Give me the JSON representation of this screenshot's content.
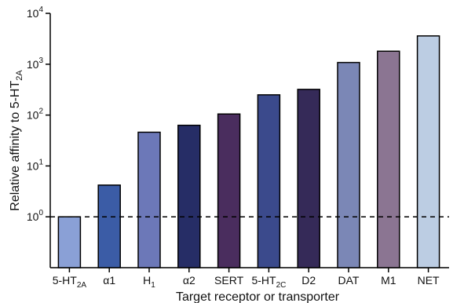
{
  "chart_data": {
    "type": "bar",
    "title": "",
    "xlabel": "Target receptor or transporter",
    "ylabel": {
      "text": "Relative affinity to 5-HT",
      "sub": "2A"
    },
    "scale": "log",
    "ylim": [
      0.1,
      10000
    ],
    "y_ticks": [
      {
        "value": 1,
        "base": "10",
        "exp": "0"
      },
      {
        "value": 10,
        "base": "10",
        "exp": "1"
      },
      {
        "value": 100,
        "base": "10",
        "exp": "2"
      },
      {
        "value": 1000,
        "base": "10",
        "exp": "3"
      },
      {
        "value": 10000,
        "base": "10",
        "exp": "4"
      }
    ],
    "reference_line": {
      "value": 1,
      "style": "dashed"
    },
    "bars": [
      {
        "label": "5-HT",
        "sub": "2A",
        "value": 1,
        "color": "#8aa0d6"
      },
      {
        "label": "α1",
        "sub": "",
        "value": 4.2,
        "color": "#3b5ca6"
      },
      {
        "label": "H",
        "sub": "1",
        "value": 46,
        "color": "#6c78b8"
      },
      {
        "label": "α2",
        "sub": "",
        "value": 63,
        "color": "#262d66"
      },
      {
        "label": "SERT",
        "sub": "",
        "value": 105,
        "color": "#4a2d5e"
      },
      {
        "label": "5-HT",
        "sub": "2C",
        "value": 250,
        "color": "#3b4a8c"
      },
      {
        "label": "D2",
        "sub": "",
        "value": 320,
        "color": "#352a58"
      },
      {
        "label": "DAT",
        "sub": "",
        "value": 1080,
        "color": "#7b87b6"
      },
      {
        "label": "M1",
        "sub": "",
        "value": 1800,
        "color": "#8b7592"
      },
      {
        "label": "NET",
        "sub": "",
        "value": 3600,
        "color": "#bccde3"
      }
    ],
    "grid": false,
    "legend": "none"
  }
}
